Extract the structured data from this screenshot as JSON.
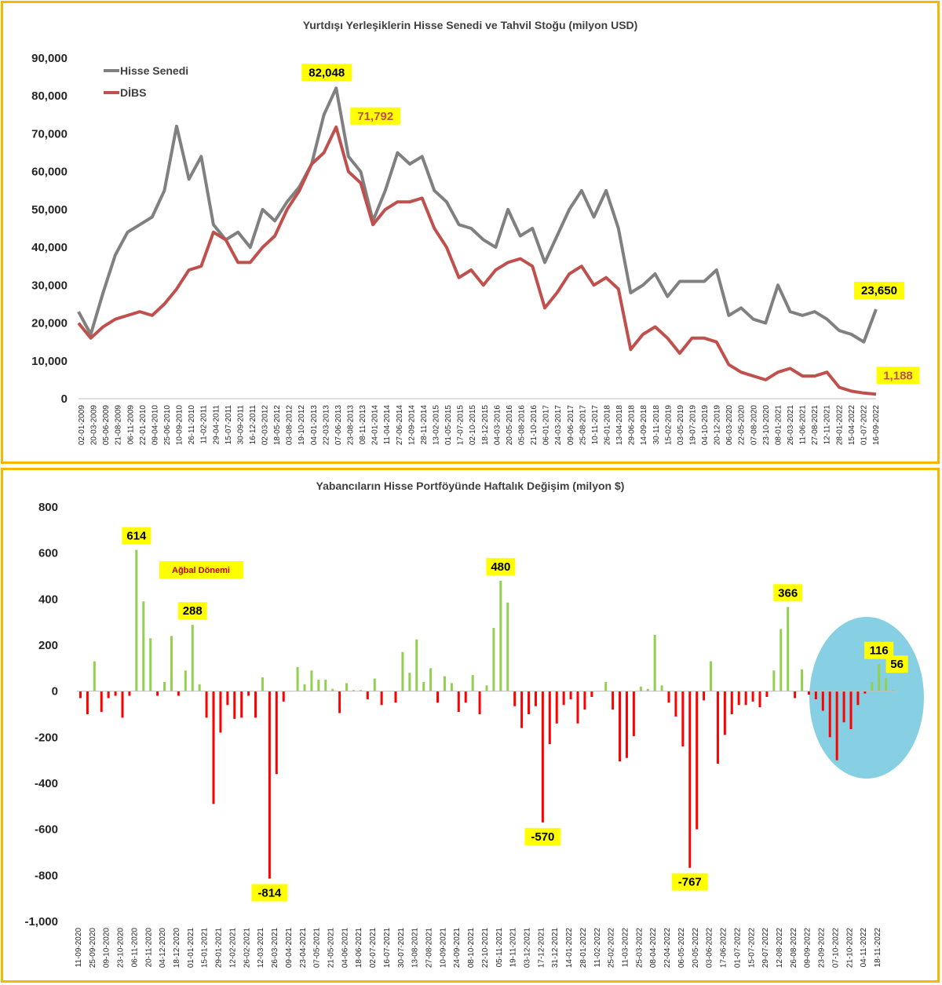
{
  "colors": {
    "border": "#f5b800",
    "hisse": "#808080",
    "dibs": "#c0504d",
    "positive_bar": "#92d050",
    "negative_bar": "#ff0000",
    "callout_bg": "#ffff00",
    "ellipse": "#87cfe3"
  },
  "chart_data": [
    {
      "type": "line",
      "title": "Yurtdışı Yerleşiklerin Hisse Senedi ve Tahvil Stoğu (milyon USD)",
      "ylim": [
        0,
        90000
      ],
      "y_ticks": [
        "0",
        "10,000",
        "20,000",
        "30,000",
        "40,000",
        "50,000",
        "60,000",
        "70,000",
        "80,000",
        "90,000"
      ],
      "x_tick_labels": [
        "02-01-2009",
        "20-03-2009",
        "05-06-2009",
        "21-08-2009",
        "06-11-2009",
        "22-01-2010",
        "09-04-2010",
        "25-06-2010",
        "10-09-2010",
        "26-11-2010",
        "11-02-2011",
        "29-04-2011",
        "15-07-2011",
        "30-09-2011",
        "16-12-2011",
        "02-03-2012",
        "18-05-2012",
        "03-08-2012",
        "19-10-2012",
        "04-01-2013",
        "22-03-2013",
        "07-06-2013",
        "23-08-2013",
        "08-11-2013",
        "24-01-2014",
        "11-04-2014",
        "27-06-2014",
        "12-09-2014",
        "28-11-2014",
        "13-02-2015",
        "01-05-2015",
        "17-07-2015",
        "02-10-2015",
        "18-12-2015",
        "04-03-2016",
        "20-05-2016",
        "05-08-2016",
        "21-10-2016",
        "06-01-2017",
        "24-03-2017",
        "09-06-2017",
        "25-08-2017",
        "10-11-2017",
        "26-01-2018",
        "13-04-2018",
        "29-06-2018",
        "14-09-2018",
        "30-11-2018",
        "15-02-2019",
        "03-05-2019",
        "19-07-2019",
        "04-10-2019",
        "20-12-2019",
        "06-03-2020",
        "22-05-2020",
        "07-08-2020",
        "23-10-2020",
        "08-01-2021",
        "26-03-2021",
        "11-06-2021",
        "27-08-2021",
        "12-11-2021",
        "28-01-2022",
        "15-04-2022",
        "01-07-2022",
        "16-09-2022"
      ],
      "legend": {
        "placement": "top-left",
        "entries": [
          "Hisse Senedi",
          "DİBS"
        ]
      },
      "grid": false,
      "series": [
        {
          "name": "Hisse Senedi",
          "values": [
            23000,
            17000,
            28000,
            38000,
            44000,
            46000,
            48000,
            55000,
            72000,
            58000,
            64000,
            46000,
            42000,
            44000,
            40000,
            50000,
            47000,
            52000,
            56000,
            62000,
            75000,
            82048,
            64000,
            60000,
            47000,
            55000,
            65000,
            62000,
            64000,
            55000,
            52000,
            46000,
            45000,
            42000,
            40000,
            50000,
            43000,
            45000,
            36000,
            43000,
            50000,
            55000,
            48000,
            55000,
            45000,
            28000,
            30000,
            33000,
            27000,
            31000,
            31000,
            31000,
            34000,
            22000,
            24000,
            21000,
            20000,
            30000,
            23000,
            22000,
            23000,
            21000,
            18000,
            17000,
            15000,
            23650
          ],
          "end_label": "23,650"
        },
        {
          "name": "DİBS",
          "values": [
            20000,
            16000,
            19000,
            21000,
            22000,
            23000,
            22000,
            25000,
            29000,
            34000,
            35000,
            44000,
            42000,
            36000,
            36000,
            40000,
            43000,
            50000,
            55000,
            62000,
            65000,
            71792,
            60000,
            57000,
            46000,
            50000,
            52000,
            52000,
            53000,
            45000,
            40000,
            32000,
            34000,
            30000,
            34000,
            36000,
            37000,
            35000,
            24000,
            28000,
            33000,
            35000,
            30000,
            32000,
            29000,
            13000,
            17000,
            19000,
            16000,
            12000,
            16000,
            16000,
            15000,
            9000,
            7000,
            6000,
            5000,
            7000,
            8000,
            6000,
            6000,
            7000,
            3000,
            2000,
            1500,
            1188
          ],
          "end_label": "1,188"
        }
      ],
      "annotations": [
        "82,048",
        "71,792",
        "23,650",
        "1,188"
      ]
    },
    {
      "type": "bar",
      "title": "Yabancıların Hisse Portföyünde Haftalık Değişim (milyon $)",
      "ylim": [
        -1000,
        800
      ],
      "y_ticks": [
        "-1,000",
        "-800",
        "-600",
        "-400",
        "-200",
        "0",
        "200",
        "400",
        "600",
        "800"
      ],
      "x_tick_labels": [
        "11-09-2020",
        "25-09-2020",
        "09-10-2020",
        "23-10-2020",
        "06-11-2020",
        "20-11-2020",
        "04-12-2020",
        "18-12-2020",
        "01-01-2021",
        "15-01-2021",
        "29-01-2021",
        "12-02-2021",
        "26-02-2021",
        "12-03-2021",
        "26-03-2021",
        "09-04-2021",
        "23-04-2021",
        "07-05-2021",
        "21-05-2021",
        "04-06-2021",
        "18-06-2021",
        "02-07-2021",
        "16-07-2021",
        "30-07-2021",
        "13-08-2021",
        "27-08-2021",
        "10-09-2021",
        "24-09-2021",
        "08-10-2021",
        "22-10-2021",
        "05-11-2021",
        "19-11-2021",
        "03-12-2021",
        "17-12-2021",
        "31-12-2021",
        "14-01-2022",
        "28-01-2022",
        "11-02-2022",
        "25-02-2022",
        "11-03-2022",
        "25-03-2022",
        "08-04-2022",
        "22-04-2022",
        "06-05-2022",
        "20-05-2022",
        "03-06-2022",
        "17-06-2022",
        "01-07-2022",
        "15-07-2022",
        "29-07-2022",
        "12-08-2022",
        "26-08-2022",
        "09-09-2022",
        "23-09-2022",
        "07-10-2022",
        "21-10-2022",
        "04-11-2022",
        "18-11-2022"
      ],
      "values": [
        -30,
        -100,
        130,
        -90,
        -30,
        -20,
        -115,
        -20,
        614,
        390,
        230,
        -20,
        40,
        240,
        -20,
        90,
        288,
        30,
        -115,
        -490,
        -180,
        -60,
        -120,
        -115,
        -20,
        -115,
        60,
        -814,
        -360,
        -45,
        0,
        105,
        30,
        90,
        50,
        50,
        10,
        -95,
        35,
        5,
        5,
        -35,
        55,
        -60,
        0,
        -50,
        170,
        80,
        225,
        40,
        100,
        -50,
        65,
        35,
        -90,
        -50,
        70,
        -100,
        25,
        275,
        480,
        385,
        -65,
        -160,
        -100,
        -65,
        -570,
        -230,
        -140,
        -60,
        -35,
        -140,
        -80,
        -25,
        0,
        40,
        -80,
        -305,
        -290,
        -195,
        20,
        10,
        245,
        25,
        -50,
        -110,
        -240,
        -767,
        -600,
        -40,
        130,
        -315,
        -190,
        -100,
        -60,
        -60,
        -45,
        -70,
        -25,
        90,
        270,
        366,
        -30,
        95,
        -15,
        -35,
        -85,
        -200,
        -300,
        -135,
        -165,
        -60,
        -10,
        40,
        116,
        56,
        5
      ],
      "annotations": [
        "614",
        "288",
        "-814",
        "480",
        "-570",
        "-767",
        "366",
        "116",
        "56"
      ],
      "notes": [
        "Ağbal Dönemi"
      ]
    }
  ]
}
